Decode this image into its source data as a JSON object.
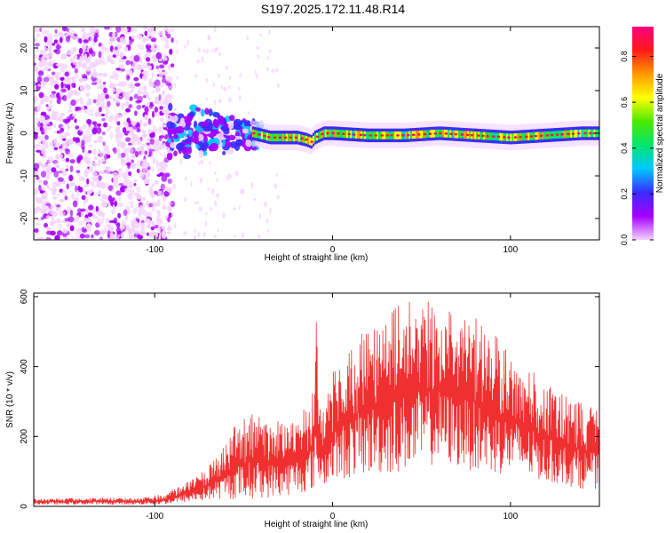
{
  "title": "S197.2025.172.11.48.R14",
  "chart_data": [
    {
      "type": "heatmap",
      "xlabel": "Height of straight line (km)",
      "ylabel": "Frequency (Hz)",
      "xlim": [
        -168,
        150
      ],
      "ylim": [
        -25,
        25
      ],
      "xticks": [
        -100,
        0,
        100
      ],
      "yticks": [
        -20,
        -10,
        0,
        10,
        20
      ],
      "colorbar": {
        "label": "Normalized spectral amplitude",
        "range": [
          0.0,
          0.93
        ],
        "ticks": [
          0.0,
          0.2,
          0.4,
          0.6,
          0.8
        ],
        "colors": [
          "#f3d2ff",
          "#a500ff",
          "#3a2bff",
          "#00c8ff",
          "#00e66e",
          "#4de800",
          "#ffff00",
          "#ff9900",
          "#ff1a1a",
          "#ff0080"
        ]
      },
      "regions": [
        {
          "x": [
            -168,
            -90
          ],
          "freq": [
            -25,
            25
          ],
          "amplitude": [
            0.02,
            0.18
          ],
          "note": "scattered noise"
        },
        {
          "x": [
            -92,
            -40
          ],
          "freq": [
            -9,
            6
          ],
          "amplitude": [
            0.05,
            0.35
          ],
          "note": "clustered blobs around 0 Hz"
        },
        {
          "x": [
            -45,
            150
          ],
          "freq": [
            -2,
            2
          ],
          "amplitude": [
            0.3,
            0.9
          ],
          "note": "continuous line near 0 Hz"
        }
      ],
      "ridge": {
        "x": [
          -45,
          -35,
          -20,
          -15,
          -12,
          -10,
          -5,
          0,
          20,
          40,
          60,
          80,
          100,
          120,
          140,
          150
        ],
        "freq": [
          0,
          -1,
          -1,
          -1.5,
          -2,
          -1,
          0,
          0,
          -0.5,
          -0.5,
          0,
          -0.5,
          -1,
          -0.5,
          0,
          0
        ]
      }
    },
    {
      "type": "line",
      "xlabel": "Height of straight line (km)",
      "ylabel": "SNR (10 * v/v)",
      "xlim": [
        -168,
        150
      ],
      "ylim": [
        0,
        610
      ],
      "xticks": [
        -100,
        0,
        100
      ],
      "yticks": [
        0,
        200,
        400,
        600
      ],
      "color": "#f03030",
      "envelope": {
        "x": [
          -168,
          -140,
          -110,
          -95,
          -85,
          -75,
          -65,
          -55,
          -45,
          -35,
          -25,
          -15,
          -10,
          -9,
          -8,
          -5,
          0,
          10,
          20,
          30,
          40,
          50,
          60,
          70,
          80,
          90,
          100,
          110,
          120,
          130,
          140,
          150
        ],
        "upper": [
          22,
          25,
          25,
          35,
          60,
          90,
          140,
          230,
          270,
          240,
          250,
          280,
          350,
          600,
          350,
          270,
          380,
          470,
          520,
          560,
          590,
          600,
          595,
          570,
          540,
          500,
          450,
          400,
          350,
          320,
          300,
          270
        ],
        "lower": [
          5,
          5,
          5,
          5,
          10,
          15,
          20,
          20,
          20,
          25,
          30,
          40,
          50,
          60,
          60,
          60,
          70,
          80,
          90,
          90,
          100,
          110,
          120,
          110,
          100,
          90,
          90,
          80,
          70,
          60,
          50,
          50
        ]
      }
    }
  ]
}
